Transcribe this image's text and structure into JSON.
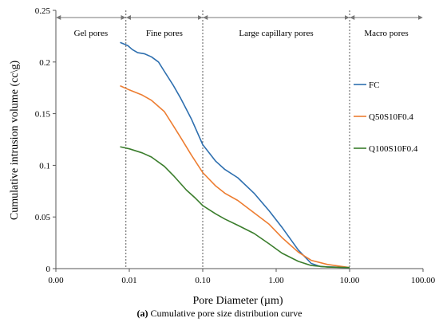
{
  "chart_data": {
    "type": "line",
    "xlabel": "Pore Diameter (µm)",
    "ylabel": "Cumulative intrusion volume (cc\\g)",
    "x_scale": "log",
    "xlim": [
      0.001,
      100
    ],
    "ylim": [
      0,
      0.25
    ],
    "x_ticks": [
      {
        "value": 0.001,
        "label": "0.00"
      },
      {
        "value": 0.01,
        "label": "0.01"
      },
      {
        "value": 0.1,
        "label": "0.10"
      },
      {
        "value": 1,
        "label": "1.00"
      },
      {
        "value": 10,
        "label": "10.00"
      },
      {
        "value": 100,
        "label": "100.00"
      }
    ],
    "y_ticks": [
      {
        "value": 0,
        "label": "0"
      },
      {
        "value": 0.05,
        "label": "0.05"
      },
      {
        "value": 0.1,
        "label": "0.1"
      },
      {
        "value": 0.15,
        "label": "0.15"
      },
      {
        "value": 0.2,
        "label": "0.2"
      },
      {
        "value": 0.25,
        "label": "0.25"
      }
    ],
    "regions": [
      {
        "label": "Gel pores",
        "from": 0.001,
        "to": 0.009
      },
      {
        "label": "Fine pores",
        "from": 0.009,
        "to": 0.1
      },
      {
        "label": "Large capillary pores",
        "from": 0.1,
        "to": 10
      },
      {
        "label": "Macro pores",
        "from": 10,
        "to": 100
      }
    ],
    "series": [
      {
        "name": "FC",
        "color": "#2e6faf",
        "points": [
          [
            0.0075,
            0.219
          ],
          [
            0.0095,
            0.216
          ],
          [
            0.011,
            0.212
          ],
          [
            0.013,
            0.209
          ],
          [
            0.016,
            0.208
          ],
          [
            0.02,
            0.205
          ],
          [
            0.025,
            0.2
          ],
          [
            0.03,
            0.191
          ],
          [
            0.04,
            0.177
          ],
          [
            0.05,
            0.165
          ],
          [
            0.07,
            0.145
          ],
          [
            0.1,
            0.12
          ],
          [
            0.15,
            0.104
          ],
          [
            0.2,
            0.096
          ],
          [
            0.3,
            0.088
          ],
          [
            0.5,
            0.073
          ],
          [
            0.8,
            0.056
          ],
          [
            1.2,
            0.04
          ],
          [
            2,
            0.018
          ],
          [
            3,
            0.005
          ],
          [
            4,
            0.002
          ],
          [
            6,
            0.0015
          ],
          [
            10,
            0.001
          ]
        ]
      },
      {
        "name": "Q50S10F0.4",
        "color": "#ed7d31",
        "points": [
          [
            0.0075,
            0.177
          ],
          [
            0.01,
            0.173
          ],
          [
            0.015,
            0.168
          ],
          [
            0.02,
            0.163
          ],
          [
            0.03,
            0.152
          ],
          [
            0.04,
            0.138
          ],
          [
            0.05,
            0.127
          ],
          [
            0.07,
            0.11
          ],
          [
            0.1,
            0.093
          ],
          [
            0.15,
            0.08
          ],
          [
            0.2,
            0.073
          ],
          [
            0.3,
            0.066
          ],
          [
            0.5,
            0.054
          ],
          [
            0.8,
            0.043
          ],
          [
            1.2,
            0.03
          ],
          [
            2,
            0.016
          ],
          [
            3,
            0.008
          ],
          [
            5,
            0.004
          ],
          [
            10,
            0.001
          ]
        ]
      },
      {
        "name": "Q100S10F0.4",
        "color": "#3a7d2c",
        "points": [
          [
            0.0075,
            0.118
          ],
          [
            0.01,
            0.116
          ],
          [
            0.015,
            0.112
          ],
          [
            0.02,
            0.108
          ],
          [
            0.03,
            0.099
          ],
          [
            0.04,
            0.09
          ],
          [
            0.06,
            0.076
          ],
          [
            0.08,
            0.068
          ],
          [
            0.1,
            0.061
          ],
          [
            0.15,
            0.053
          ],
          [
            0.2,
            0.048
          ],
          [
            0.3,
            0.042
          ],
          [
            0.5,
            0.034
          ],
          [
            0.8,
            0.024
          ],
          [
            1.2,
            0.015
          ],
          [
            2,
            0.007
          ],
          [
            3,
            0.003
          ],
          [
            5,
            0.0015
          ],
          [
            10,
            0.001
          ]
        ]
      }
    ]
  },
  "caption": {
    "prefix": "(a)",
    "text": " Cumulative pore size distribution curve"
  }
}
